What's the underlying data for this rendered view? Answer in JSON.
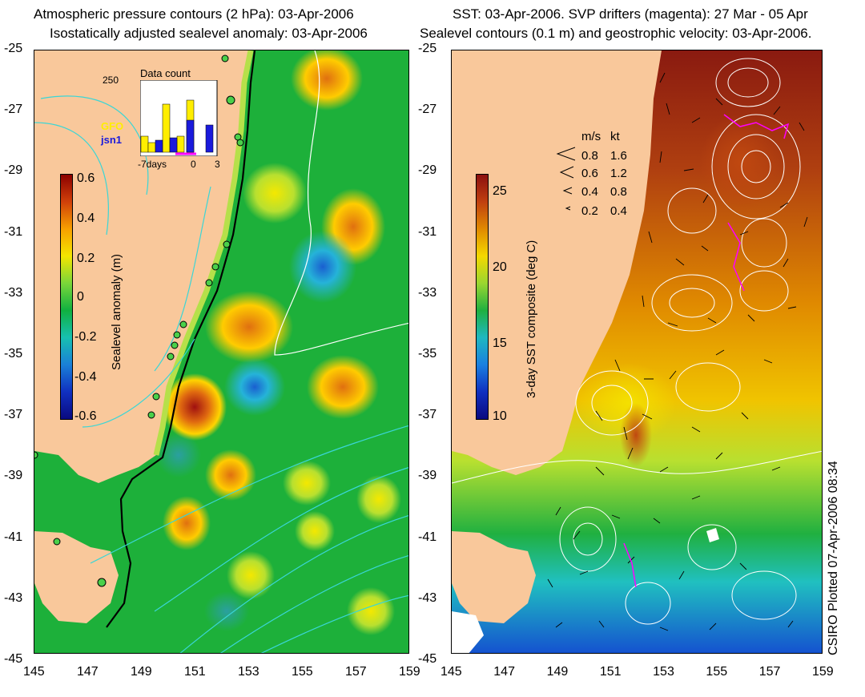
{
  "left_panel": {
    "title_line1": "Atmospheric pressure contours (2 hPa): 03-Apr-2006",
    "title_line2": "Isostatically adjusted sealevel anomaly: 03-Apr-2006",
    "pressure_label": "250",
    "inset_title": "Data count",
    "inset_series": [
      "GFO",
      "jsn1"
    ],
    "inset_axis": [
      "-7days",
      "0",
      "3"
    ],
    "colorbar_label": "Sealevel anomaly (m)",
    "colorbar_ticks": [
      "0.6",
      "0.4",
      "0.2",
      "0",
      "-0.2",
      "-0.4",
      "-0.6"
    ],
    "colors": {
      "land": "#f9c89b",
      "ocean_base": "#1db03a",
      "gfo": "#ffee00",
      "jsn1": "#1a1adc",
      "contour": "#3ad6d6",
      "drifter": "#ff00ff"
    }
  },
  "right_panel": {
    "title_line1": "SST: 03-Apr-2006. SVP drifters (magenta): 27 Mar - 05 Apr",
    "title_line2": "Sealevel contours (0.1 m) and geostrophic velocity: 03-Apr-2006.",
    "colorbar_label": "3-day SST composite (deg C)",
    "colorbar_ticks": [
      "25",
      "20",
      "15",
      "10"
    ],
    "speed_legend": {
      "headers": [
        "m/s",
        "kt"
      ],
      "rows": [
        [
          "0.8",
          "1.6"
        ],
        [
          "0.6",
          "1.2"
        ],
        [
          "0.4",
          "0.8"
        ],
        [
          "0.2",
          "0.4"
        ]
      ]
    }
  },
  "lat_ticks": [
    "-25",
    "-27",
    "-29",
    "-31",
    "-33",
    "-35",
    "-37",
    "-39",
    "-41",
    "-43",
    "-45"
  ],
  "lon_ticks": [
    "145",
    "147",
    "149",
    "151",
    "153",
    "155",
    "157",
    "159"
  ],
  "credit": "CSIRO Plotted 07-Apr-2006 08:34"
}
